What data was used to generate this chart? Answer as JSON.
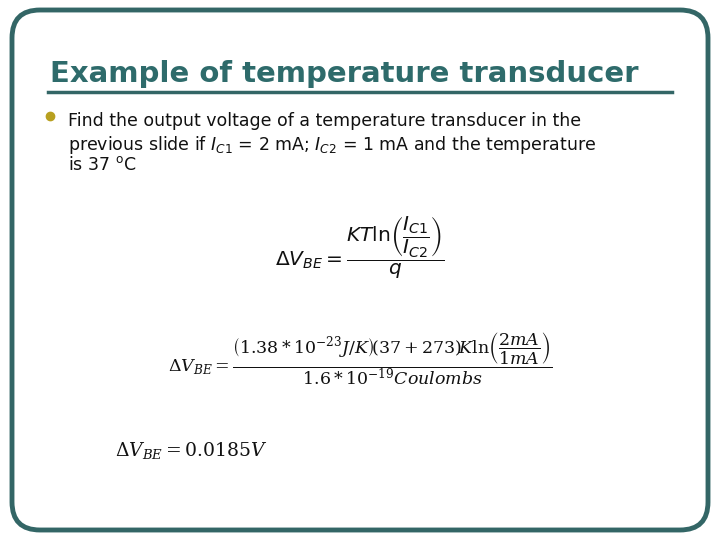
{
  "title": "Example of temperature transducer",
  "title_color": "#2E6B6B",
  "background_color": "#FFFFFF",
  "border_color": "#336666",
  "bullet_color": "#B8A020",
  "figsize": [
    7.2,
    5.4
  ],
  "dpi": 100,
  "bullet_lines": [
    "Find the output voltage of a temperature transducer in the",
    "previous slide if $I_{C1}$ = 2 mA; $I_{C2}$ = 1 mA and the temperature",
    "is 37 $^{\\mathrm{o}}$C"
  ]
}
